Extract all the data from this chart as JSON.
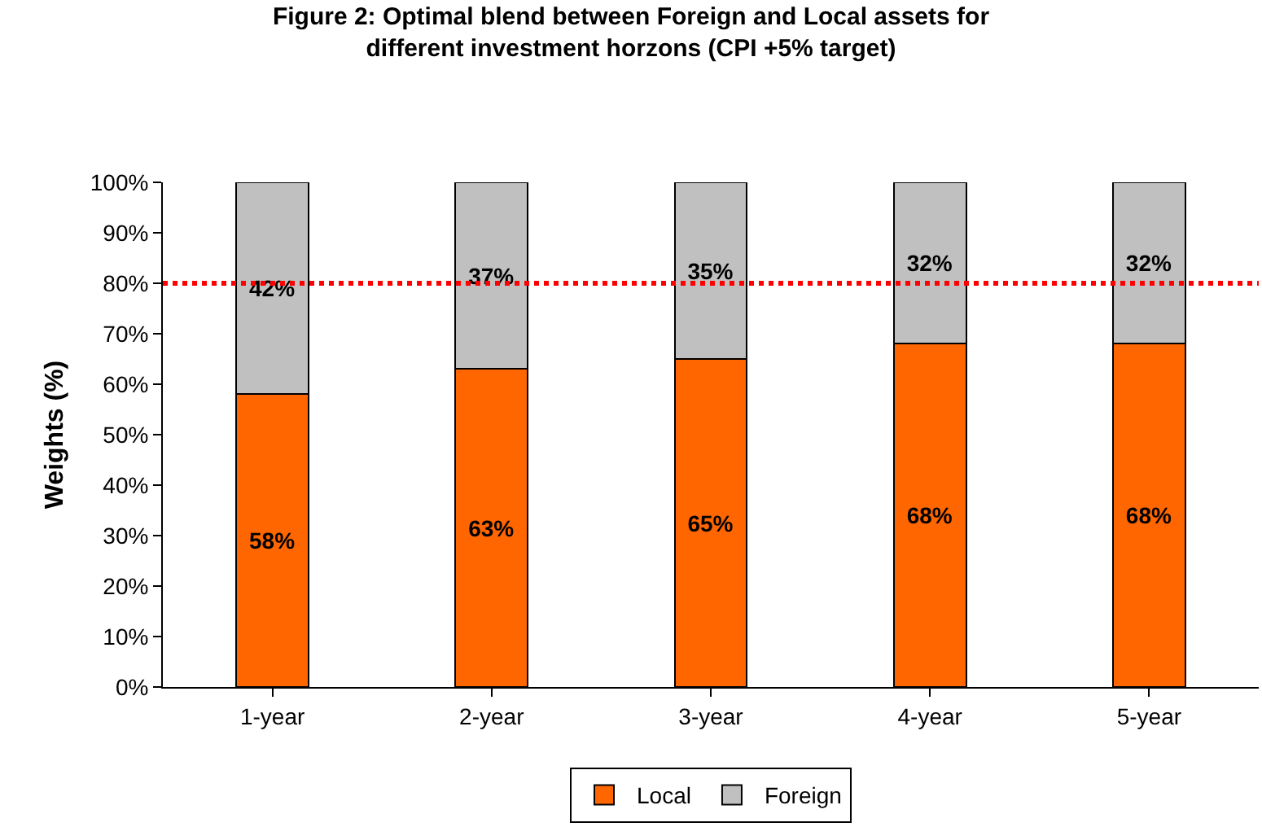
{
  "chart_data": {
    "type": "bar",
    "stacked": true,
    "title": "Figure 2: Optimal blend between Foreign and Local assets for different investment horzons (CPI +5% target)",
    "ylabel": "Weights (%)",
    "categories": [
      "1-year",
      "2-year",
      "3-year",
      "4-year",
      "5-year"
    ],
    "series": [
      {
        "name": "Local",
        "color": "#ff6600",
        "values": [
          58,
          63,
          65,
          68,
          68
        ],
        "value_labels": [
          "58%",
          "63%",
          "65%",
          "68%",
          "68%"
        ]
      },
      {
        "name": "Foreign",
        "color": "#c0c0c0",
        "values": [
          42,
          37,
          35,
          32,
          32
        ],
        "value_labels": [
          "42%",
          "37%",
          "35%",
          "32%",
          "32%"
        ]
      }
    ],
    "ylim": [
      0,
      100
    ],
    "yticks": [
      {
        "value": 0,
        "label": "0%"
      },
      {
        "value": 10,
        "label": "10%"
      },
      {
        "value": 20,
        "label": "20%"
      },
      {
        "value": 30,
        "label": "30%"
      },
      {
        "value": 40,
        "label": "40%"
      },
      {
        "value": 50,
        "label": "50%"
      },
      {
        "value": 60,
        "label": "60%"
      },
      {
        "value": 70,
        "label": "70%"
      },
      {
        "value": 80,
        "label": "80%"
      },
      {
        "value": 90,
        "label": "90%"
      },
      {
        "value": 100,
        "label": "100%"
      }
    ],
    "ref_lines": [
      {
        "axis": "y",
        "value": 80,
        "color": "#ff0000",
        "line_style": "dotted"
      }
    ],
    "grid": false,
    "legend": "bottom"
  }
}
